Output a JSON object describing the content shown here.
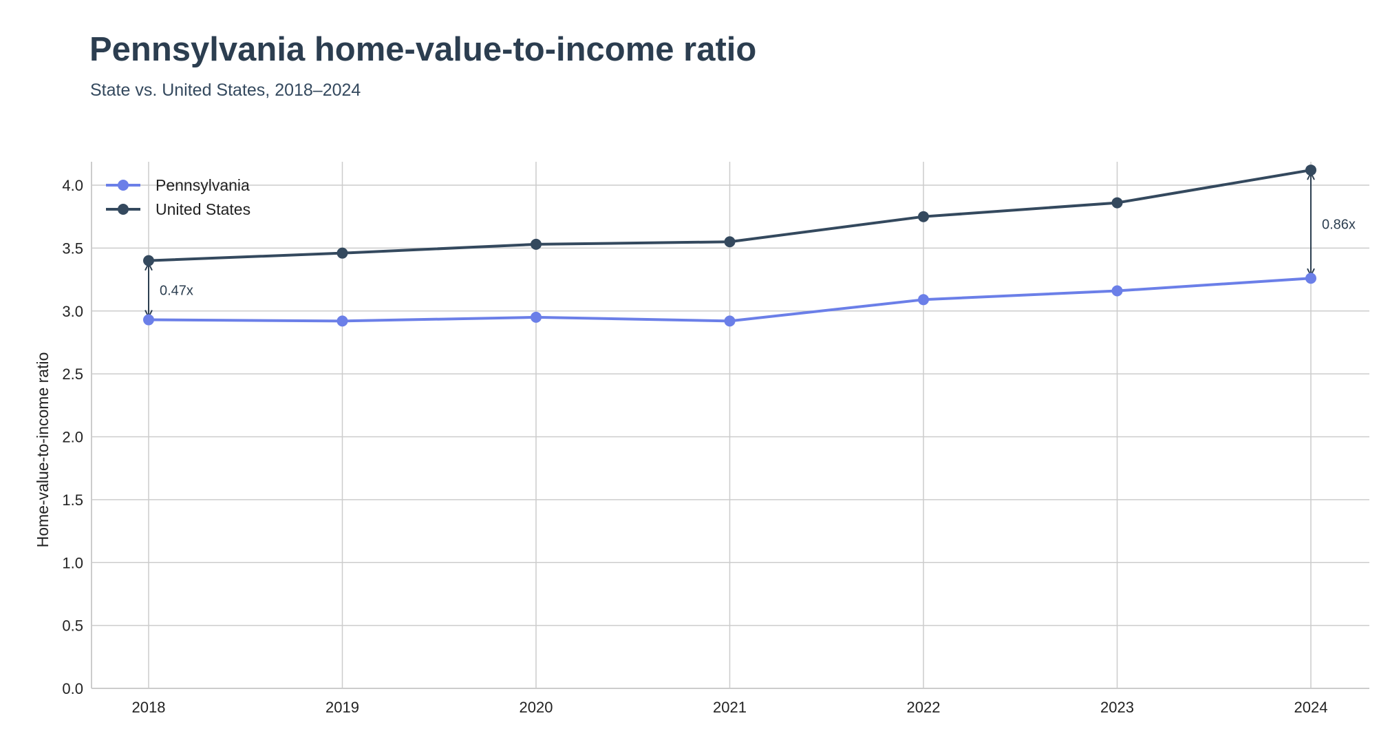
{
  "title": "Pennsylvania home-value-to-income ratio",
  "subtitle": "State vs. United States, 2018–2024",
  "chart_data": {
    "type": "line",
    "title": "Pennsylvania home-value-to-income ratio",
    "subtitle": "State vs. United States, 2018–2024",
    "xlabel": "",
    "ylabel": "Home-value-to-income ratio",
    "x": [
      "2018",
      "2019",
      "2020",
      "2021",
      "2022",
      "2023",
      "2024"
    ],
    "ylim": [
      0,
      4.2
    ],
    "yticks": [
      "0.0",
      "0.5",
      "1.0",
      "1.5",
      "2.0",
      "2.5",
      "3.0",
      "3.5",
      "4.0"
    ],
    "grid": true,
    "legend_position": "top-left",
    "series": [
      {
        "name": "Pennsylvania",
        "color": "#6b7fe8",
        "values": [
          2.93,
          2.92,
          2.95,
          2.92,
          3.09,
          3.16,
          3.26
        ]
      },
      {
        "name": "United States",
        "color": "#34495e",
        "values": [
          3.4,
          3.46,
          3.53,
          3.55,
          3.75,
          3.86,
          4.12
        ]
      }
    ],
    "annotations": [
      {
        "x": "2018",
        "label": "0.47x"
      },
      {
        "x": "2024",
        "label": "0.86x"
      }
    ]
  }
}
